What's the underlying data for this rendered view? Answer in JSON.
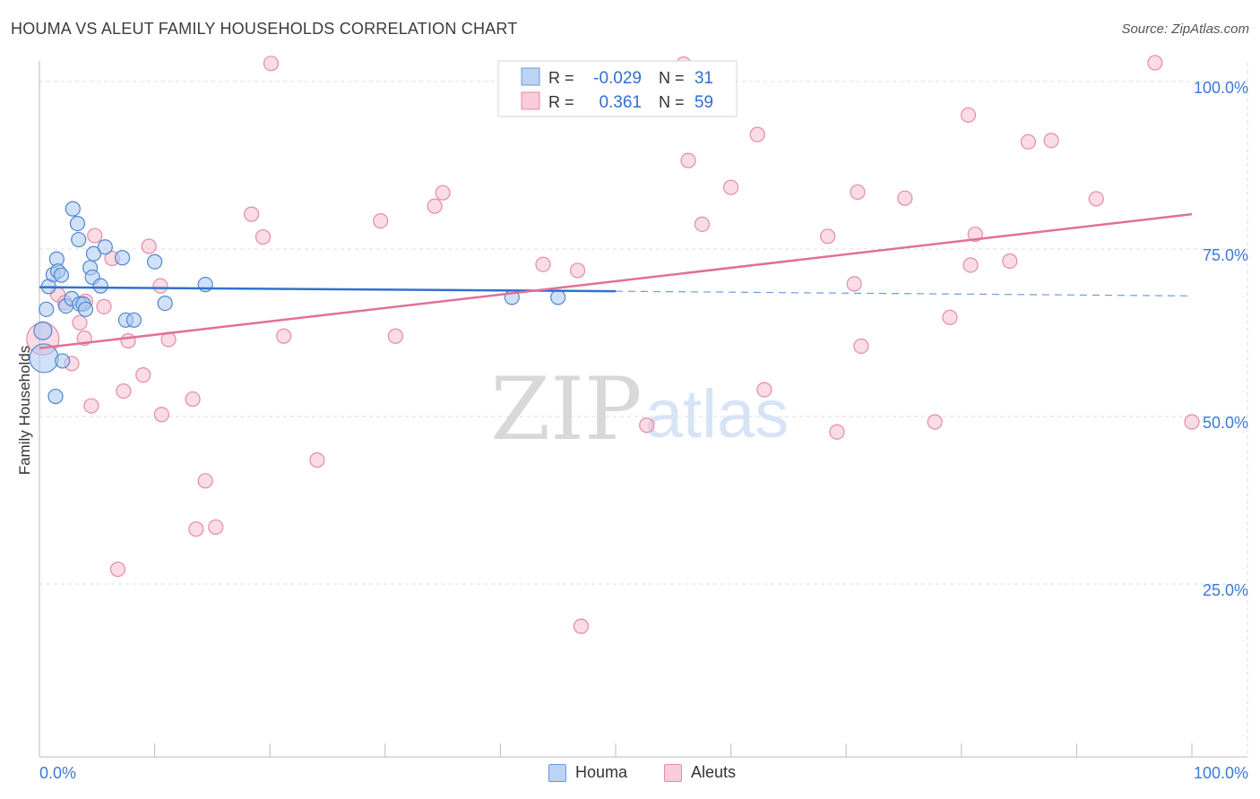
{
  "header": {
    "title": "HOUMA VS ALEUT FAMILY HOUSEHOLDS CORRELATION CHART",
    "source": "Source: ZipAtlas.com"
  },
  "watermark": {
    "zip": "ZIP",
    "atlas": "atlas"
  },
  "colors": {
    "houma_fill": "#a9c8f0",
    "houma_stroke": "#4f86cf",
    "houma_line": "#2f72d0",
    "aleut_fill": "#f6bfd0",
    "aleut_stroke": "#e58aa8",
    "aleut_line": "#e0709a",
    "tick_text": "#3c78d8",
    "grid": "#dcdcdc"
  },
  "legend": {
    "rows": [
      {
        "series": "houma",
        "r_label": "R =",
        "r_value": "-0.029",
        "n_label": "N =",
        "n_value": "31"
      },
      {
        "series": "aleut",
        "r_label": "R =",
        "r_value": "0.361",
        "n_label": "N =",
        "n_value": "59"
      }
    ]
  },
  "bottom_legend": {
    "houma": "Houma",
    "aleut": "Aleuts"
  },
  "chart_data": {
    "type": "scatter",
    "title": "HOUMA VS ALEUT FAMILY HOUSEHOLDS CORRELATION CHART",
    "xlabel": "",
    "ylabel": "Family Households",
    "xlim": [
      0,
      100
    ],
    "ylim": [
      0,
      100
    ],
    "x_tick_labels": {
      "min": "0.0%",
      "max": "100.0%"
    },
    "y_ticks": [
      {
        "value": 25,
        "label": "25.0%"
      },
      {
        "value": 50,
        "label": "50.0%"
      },
      {
        "value": 75,
        "label": "75.0%"
      },
      {
        "value": 100,
        "label": "100.0%"
      }
    ],
    "series": [
      {
        "name": "Houma",
        "r": -0.029,
        "n": 31,
        "trend": {
          "x0": 0,
          "y0": 70.1,
          "x1": 50,
          "y1": 69.5,
          "dash_to_x": 100,
          "dash_to_y": 68.8
        },
        "points": [
          [
            0.3,
            63.6,
            10
          ],
          [
            0.4,
            59.5,
            16
          ],
          [
            0.6,
            66.8,
            8
          ],
          [
            0.8,
            70.2,
            8
          ],
          [
            1.2,
            72.0,
            8
          ],
          [
            1.5,
            74.3,
            8
          ],
          [
            1.6,
            72.5,
            8
          ],
          [
            1.9,
            71.9,
            8
          ],
          [
            2.0,
            59.1,
            8
          ],
          [
            1.4,
            53.8,
            8
          ],
          [
            2.3,
            67.3,
            8
          ],
          [
            2.8,
            68.4,
            8
          ],
          [
            2.9,
            81.8,
            8
          ],
          [
            3.3,
            79.6,
            8
          ],
          [
            3.4,
            77.2,
            8
          ],
          [
            3.5,
            67.6,
            8
          ],
          [
            3.8,
            67.6,
            8
          ],
          [
            4.0,
            66.8,
            8
          ],
          [
            4.4,
            73.0,
            8
          ],
          [
            4.6,
            71.6,
            8
          ],
          [
            4.7,
            75.1,
            8
          ],
          [
            5.3,
            70.3,
            8
          ],
          [
            5.7,
            76.1,
            8
          ],
          [
            7.2,
            74.5,
            8
          ],
          [
            7.5,
            65.2,
            8
          ],
          [
            8.2,
            65.2,
            8
          ],
          [
            10.0,
            73.9,
            8
          ],
          [
            10.9,
            67.7,
            8
          ],
          [
            14.4,
            70.5,
            8
          ],
          [
            41.0,
            68.6,
            8
          ],
          [
            45.0,
            68.6,
            8
          ]
        ]
      },
      {
        "name": "Aleuts",
        "r": 0.361,
        "n": 59,
        "trend": {
          "x0": 0,
          "y0": 61.0,
          "x1": 100,
          "y1": 81.0
        },
        "points": [
          [
            0.3,
            62.4,
            18
          ],
          [
            1.6,
            69.0,
            8
          ],
          [
            2.2,
            67.8,
            8
          ],
          [
            2.8,
            58.7,
            8
          ],
          [
            3.5,
            64.8,
            8
          ],
          [
            3.9,
            62.5,
            8
          ],
          [
            4.5,
            52.4,
            8
          ],
          [
            4.8,
            77.8,
            8
          ],
          [
            5.6,
            67.2,
            8
          ],
          [
            6.3,
            74.4,
            8
          ],
          [
            7.3,
            54.6,
            8
          ],
          [
            7.7,
            62.1,
            8
          ],
          [
            9.0,
            57.0,
            8
          ],
          [
            9.5,
            76.2,
            8
          ],
          [
            10.6,
            51.1,
            8
          ],
          [
            10.5,
            70.3,
            8
          ],
          [
            11.2,
            62.3,
            8
          ],
          [
            13.3,
            53.4,
            8
          ],
          [
            14.4,
            41.2,
            8
          ],
          [
            13.6,
            34.0,
            8
          ],
          [
            15.3,
            34.3,
            8
          ],
          [
            6.8,
            28.0,
            8
          ],
          [
            18.4,
            81.0,
            8
          ],
          [
            19.4,
            77.6,
            8
          ],
          [
            20.1,
            103.5,
            8
          ],
          [
            21.2,
            62.8,
            8
          ],
          [
            24.1,
            44.3,
            8
          ],
          [
            29.6,
            80.0,
            8
          ],
          [
            30.9,
            62.8,
            8
          ],
          [
            34.3,
            82.2,
            8
          ],
          [
            35.0,
            84.2,
            8
          ],
          [
            43.7,
            73.5,
            8
          ],
          [
            47.0,
            19.5,
            8
          ],
          [
            52.7,
            49.5,
            8
          ],
          [
            55.9,
            103.4,
            8
          ],
          [
            56.3,
            89.0,
            8
          ],
          [
            57.5,
            79.5,
            8
          ],
          [
            60.0,
            85.0,
            8
          ],
          [
            62.3,
            92.9,
            8
          ],
          [
            62.9,
            54.8,
            8
          ],
          [
            68.4,
            77.7,
            8
          ],
          [
            69.2,
            48.5,
            8
          ],
          [
            71.0,
            84.3,
            8
          ],
          [
            70.7,
            70.6,
            8
          ],
          [
            71.3,
            61.3,
            8
          ],
          [
            75.1,
            83.4,
            8
          ],
          [
            77.7,
            50.0,
            8
          ],
          [
            79.0,
            65.6,
            8
          ],
          [
            80.6,
            95.8,
            8
          ],
          [
            80.8,
            73.4,
            8
          ],
          [
            81.2,
            78.0,
            8
          ],
          [
            84.2,
            74.0,
            8
          ],
          [
            85.8,
            91.8,
            8
          ],
          [
            87.8,
            92.0,
            8
          ],
          [
            91.7,
            83.3,
            8
          ],
          [
            96.8,
            103.6,
            8
          ],
          [
            100.0,
            50.0,
            8
          ],
          [
            46.7,
            72.6,
            8
          ],
          [
            4.0,
            68.0,
            8
          ]
        ]
      }
    ]
  }
}
